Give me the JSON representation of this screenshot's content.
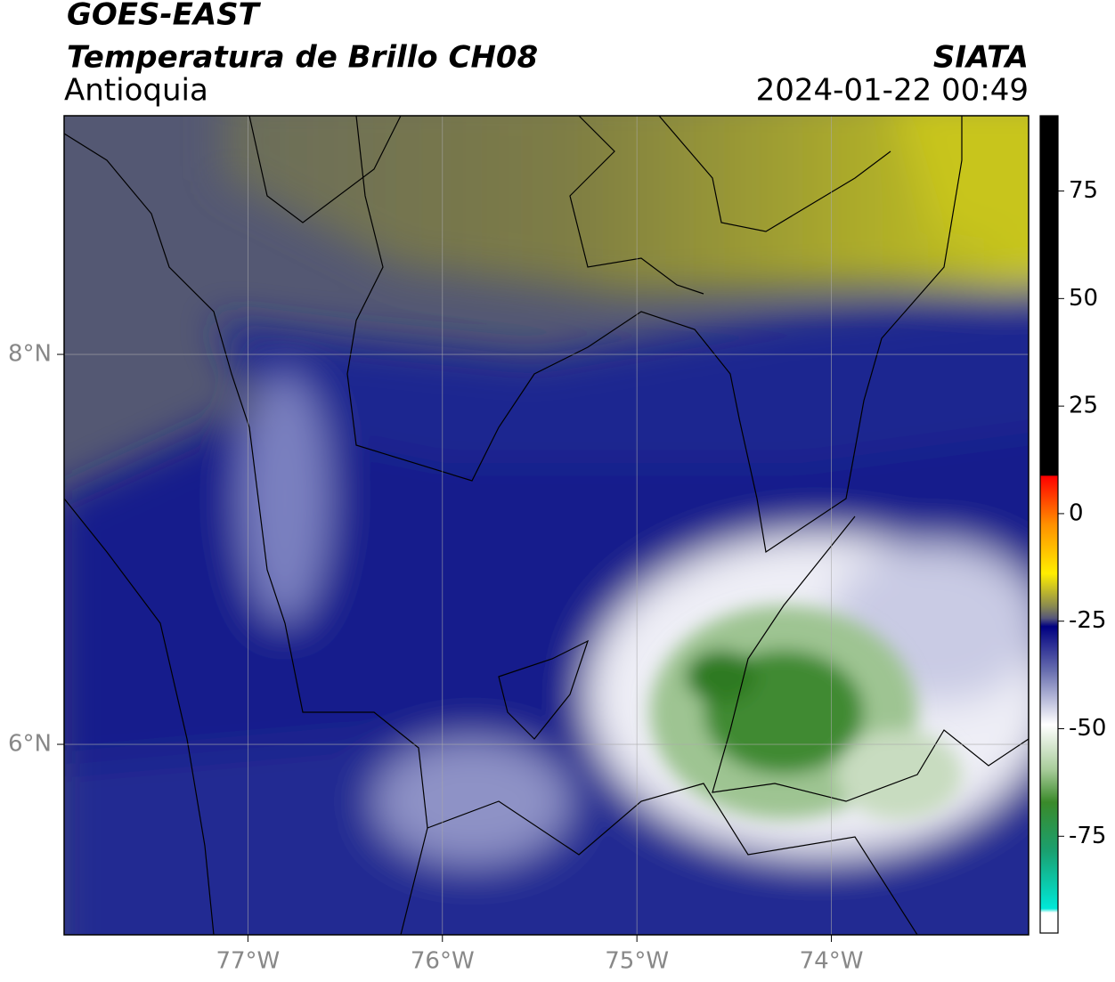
{
  "header": {
    "satellite": "GOES-EAST",
    "product": "Temperatura de Brillo CH08",
    "region": "Antioquia",
    "agency": "SIATA",
    "datetime": "2024-01-22 00:49"
  },
  "map": {
    "xlim": [
      -77.945,
      -72.986
    ],
    "ylim": [
      5.023,
      9.224
    ],
    "xticks": [
      {
        "value": -77,
        "label": "77°W"
      },
      {
        "value": -76,
        "label": "76°W"
      },
      {
        "value": -75,
        "label": "75°W"
      },
      {
        "value": -74,
        "label": "74°W"
      }
    ],
    "yticks": [
      {
        "value": 6,
        "label": "6°N"
      },
      {
        "value": 8,
        "label": "8°N"
      }
    ],
    "grid": true
  },
  "colorbar": {
    "lim": [
      -97.5,
      92.5
    ],
    "ticks": [
      75,
      50,
      25,
      0,
      -25,
      -50,
      -75
    ]
  }
}
